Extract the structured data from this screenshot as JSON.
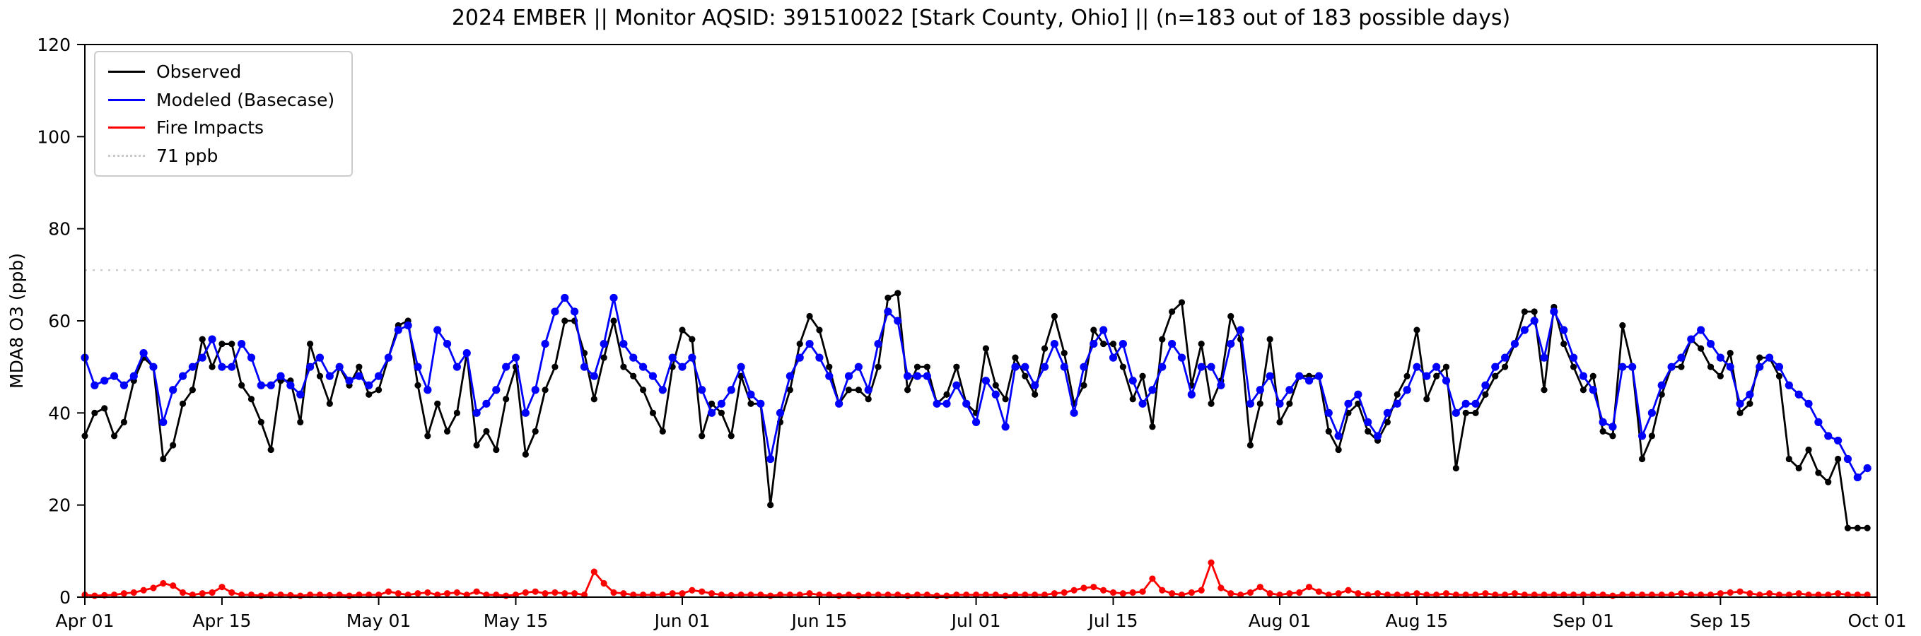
{
  "chart_data": {
    "type": "line",
    "title": "2024 EMBER || Monitor AQSID: 391510022 [Stark County, Ohio] || (n=183 out of 183 possible days)",
    "xlabel": "",
    "ylabel": "MDA8 O3 (ppb)",
    "ylim": [
      0,
      120
    ],
    "yticks": [
      0,
      20,
      40,
      60,
      80,
      100,
      120
    ],
    "x_days": 183,
    "grid": false,
    "legend_position": "upper left",
    "xticks": [
      {
        "label": "Apr 01",
        "day": 0
      },
      {
        "label": "Apr 15",
        "day": 14
      },
      {
        "label": "May 01",
        "day": 30
      },
      {
        "label": "May 15",
        "day": 44
      },
      {
        "label": "Jun 01",
        "day": 61
      },
      {
        "label": "Jun 15",
        "day": 75
      },
      {
        "label": "Jul 01",
        "day": 91
      },
      {
        "label": "Jul 15",
        "day": 105
      },
      {
        "label": "Aug 01",
        "day": 122
      },
      {
        "label": "Aug 15",
        "day": 136
      },
      {
        "label": "Sep 01",
        "day": 153
      },
      {
        "label": "Sep 15",
        "day": 167
      },
      {
        "label": "Oct 01",
        "day": 183
      }
    ],
    "threshold": {
      "value": 71,
      "label": "71 ppb",
      "color": "#c9c9c9",
      "style": "dotted"
    },
    "legend": [
      {
        "label": "Observed",
        "color": "#000000",
        "dotted": false
      },
      {
        "label": "Modeled (Basecase)",
        "color": "#0000ff",
        "dotted": false
      },
      {
        "label": "Fire Impacts",
        "color": "#ff0000",
        "dotted": false
      },
      {
        "label": "71 ppb",
        "color": "#c9c9c9",
        "dotted": true
      }
    ],
    "series": [
      {
        "name": "Observed",
        "color": "#000000",
        "values": [
          35,
          40,
          41,
          35,
          38,
          47,
          52,
          50,
          30,
          33,
          42,
          45,
          56,
          50,
          55,
          55,
          46,
          43,
          38,
          32,
          47,
          47,
          38,
          55,
          48,
          42,
          50,
          46,
          50,
          44,
          45,
          52,
          59,
          60,
          46,
          35,
          42,
          36,
          40,
          53,
          33,
          36,
          32,
          43,
          50,
          31,
          36,
          45,
          50,
          60,
          60,
          53,
          43,
          52,
          60,
          50,
          48,
          45,
          40,
          36,
          50,
          58,
          56,
          35,
          42,
          40,
          35,
          48,
          42,
          42,
          20,
          38,
          45,
          55,
          61,
          58,
          50,
          42,
          45,
          45,
          43,
          50,
          65,
          66,
          45,
          50,
          50,
          42,
          44,
          50,
          42,
          40,
          54,
          46,
          43,
          52,
          48,
          44,
          54,
          61,
          53,
          42,
          46,
          58,
          55,
          55,
          50,
          43,
          48,
          37,
          56,
          62,
          64,
          46,
          55,
          42,
          47,
          61,
          56,
          33,
          42,
          56,
          38,
          42,
          48,
          48,
          48,
          36,
          32,
          40,
          42,
          36,
          34,
          38,
          44,
          48,
          58,
          43,
          48,
          50,
          28,
          40,
          40,
          44,
          48,
          50,
          55,
          62,
          62,
          45,
          63,
          55,
          50,
          45,
          48,
          36,
          35,
          59,
          50,
          30,
          35,
          44,
          50,
          50,
          56,
          54,
          50,
          48,
          53,
          40,
          42,
          52,
          52,
          48,
          30,
          28,
          32,
          27,
          25,
          30,
          15,
          15,
          15
        ]
      },
      {
        "name": "Modeled (Basecase)",
        "color": "#0000ff",
        "values": [
          52,
          46,
          47,
          48,
          46,
          48,
          53,
          50,
          38,
          45,
          48,
          50,
          52,
          56,
          50,
          50,
          55,
          52,
          46,
          46,
          48,
          46,
          44,
          50,
          52,
          48,
          50,
          47,
          48,
          46,
          48,
          52,
          58,
          59,
          50,
          45,
          58,
          55,
          50,
          53,
          40,
          42,
          45,
          50,
          52,
          40,
          45,
          55,
          62,
          65,
          62,
          50,
          48,
          55,
          65,
          55,
          52,
          50,
          48,
          45,
          52,
          50,
          52,
          45,
          40,
          42,
          45,
          50,
          44,
          42,
          30,
          40,
          48,
          52,
          55,
          52,
          48,
          42,
          48,
          50,
          45,
          55,
          62,
          60,
          48,
          48,
          48,
          42,
          42,
          46,
          42,
          38,
          47,
          44,
          37,
          50,
          50,
          46,
          50,
          55,
          50,
          40,
          50,
          55,
          58,
          52,
          55,
          47,
          42,
          45,
          50,
          55,
          52,
          44,
          50,
          50,
          46,
          55,
          58,
          42,
          45,
          48,
          42,
          45,
          48,
          47,
          48,
          40,
          35,
          42,
          44,
          38,
          35,
          40,
          42,
          45,
          50,
          48,
          50,
          47,
          40,
          42,
          42,
          46,
          50,
          52,
          55,
          58,
          60,
          52,
          62,
          58,
          52,
          48,
          45,
          38,
          37,
          50,
          50,
          35,
          40,
          46,
          50,
          52,
          56,
          58,
          55,
          52,
          50,
          42,
          44,
          50,
          52,
          50,
          46,
          44,
          42,
          38,
          35,
          34,
          30,
          26,
          28
        ]
      },
      {
        "name": "Fire Impacts",
        "color": "#ff0000",
        "values": [
          0.5,
          0.3,
          0.4,
          0.5,
          0.8,
          1.0,
          1.5,
          2.0,
          3.0,
          2.5,
          1.0,
          0.5,
          0.8,
          1.0,
          2.2,
          1.0,
          0.5,
          0.5,
          0.3,
          0.5,
          0.5,
          0.4,
          0.3,
          0.5,
          0.5,
          0.4,
          0.5,
          0.3,
          0.5,
          0.5,
          0.5,
          1.2,
          0.8,
          0.5,
          0.8,
          1.0,
          0.5,
          0.8,
          1.0,
          0.5,
          1.2,
          0.5,
          0.5,
          0.3,
          0.5,
          1.0,
          1.2,
          0.8,
          1.0,
          0.8,
          0.8,
          0.5,
          5.5,
          3.0,
          1.0,
          0.8,
          0.5,
          0.5,
          0.5,
          0.5,
          0.8,
          0.8,
          1.5,
          1.2,
          0.8,
          0.5,
          0.4,
          0.5,
          0.5,
          0.5,
          0.3,
          0.5,
          0.5,
          0.5,
          0.8,
          0.5,
          0.5,
          0.3,
          0.5,
          0.3,
          0.5,
          0.5,
          0.5,
          0.5,
          0.3,
          0.5,
          0.5,
          0.3,
          0.3,
          0.5,
          0.5,
          0.5,
          0.5,
          0.5,
          0.3,
          0.5,
          0.5,
          0.5,
          0.5,
          0.8,
          1.0,
          1.5,
          2.0,
          2.2,
          1.5,
          1.0,
          0.8,
          1.0,
          1.2,
          4.0,
          1.5,
          0.8,
          0.5,
          1.0,
          1.5,
          7.5,
          2.0,
          0.8,
          0.5,
          1.0,
          2.2,
          0.8,
          0.5,
          0.8,
          1.0,
          2.2,
          1.2,
          0.5,
          0.8,
          1.5,
          0.8,
          0.5,
          0.8,
          0.5,
          0.5,
          0.5,
          0.8,
          0.5,
          0.5,
          0.8,
          0.5,
          0.5,
          0.5,
          0.8,
          0.5,
          0.5,
          0.8,
          0.5,
          0.5,
          0.5,
          0.5,
          0.5,
          0.5,
          0.5,
          0.5,
          0.5,
          0.3,
          0.5,
          0.5,
          0.5,
          0.5,
          0.5,
          0.5,
          0.8,
          0.5,
          0.5,
          0.5,
          0.8,
          1.0,
          1.2,
          0.8,
          0.5,
          0.8,
          0.5,
          0.5,
          0.8,
          0.5,
          0.5,
          0.5,
          0.8,
          0.5,
          0.5,
          0.5
        ]
      }
    ]
  }
}
